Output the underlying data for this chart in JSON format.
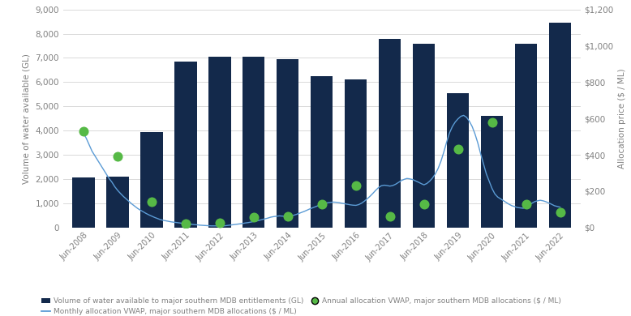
{
  "bar_labels": [
    "Jun-2008",
    "Jun-2009",
    "Jun-2010",
    "Jun-2011",
    "Jun-2012",
    "Jun-2013",
    "Jun-2014",
    "Jun-2015",
    "Jun-2016",
    "Jun-2017",
    "Jun-2018",
    "Jun-2019",
    "Jun-2020",
    "Jun-2021",
    "Jun-2022"
  ],
  "bar_values": [
    2080,
    2100,
    3950,
    6850,
    7050,
    7050,
    6950,
    6250,
    6100,
    7800,
    7600,
    5550,
    4600,
    7600,
    8450
  ],
  "bar_color": "#13294B",
  "annual_vwap_y": [
    530,
    390,
    140,
    20,
    25,
    55,
    60,
    130,
    230,
    60,
    130,
    430,
    580,
    130,
    85
  ],
  "annual_dot_color": "#56B946",
  "monthly_vwap_y": [
    520,
    490,
    455,
    420,
    395,
    370,
    345,
    320,
    295,
    270,
    250,
    225,
    205,
    188,
    172,
    158,
    144,
    130,
    118,
    106,
    96,
    87,
    78,
    70,
    63,
    56,
    50,
    44,
    40,
    37,
    34,
    31,
    29,
    27,
    25,
    23,
    22,
    20,
    18,
    16,
    15,
    13,
    12,
    11,
    10,
    9,
    9,
    9,
    9,
    9,
    10,
    12,
    14,
    16,
    18,
    20,
    22,
    25,
    27,
    30,
    33,
    36,
    40,
    44,
    48,
    52,
    57,
    60,
    62,
    64,
    63,
    62,
    62,
    64,
    67,
    72,
    78,
    84,
    90,
    97,
    104,
    110,
    116,
    122,
    128,
    133,
    136,
    138,
    140,
    139,
    137,
    134,
    131,
    128,
    125,
    123,
    122,
    126,
    134,
    145,
    158,
    172,
    188,
    205,
    220,
    230,
    233,
    231,
    228,
    231,
    238,
    248,
    258,
    265,
    270,
    268,
    264,
    257,
    250,
    242,
    235,
    242,
    255,
    272,
    295,
    325,
    365,
    415,
    470,
    520,
    555,
    580,
    598,
    612,
    617,
    607,
    585,
    556,
    515,
    465,
    405,
    350,
    295,
    255,
    215,
    185,
    168,
    158,
    148,
    138,
    128,
    120,
    115,
    110,
    108,
    106,
    112,
    122,
    133,
    142,
    147,
    150,
    147,
    142,
    135,
    128,
    120,
    116,
    112
  ],
  "monthly_line_color": "#5B9BD5",
  "left_ylabel": "Volume of water available (GL)",
  "right_ylabel": "Allocation price ($ / ML)",
  "left_ylim": [
    0,
    9000
  ],
  "right_ylim": [
    0,
    1200
  ],
  "left_yticks": [
    0,
    1000,
    2000,
    3000,
    4000,
    5000,
    6000,
    7000,
    8000,
    9000
  ],
  "right_yticks": [
    0,
    200,
    400,
    600,
    800,
    1000,
    1200
  ],
  "right_yticklabels": [
    "$0",
    "$200",
    "$400",
    "$600",
    "$800",
    "$1,000",
    "$1,200"
  ],
  "left_yticklabels": [
    "0",
    "1,000",
    "2,000",
    "3,000",
    "4,000",
    "5,000",
    "6,000",
    "7,000",
    "8,000",
    "9,000"
  ],
  "legend1_label": "Volume of water available to major southern MDB entitlements (GL)",
  "legend2_label": "Monthly allocation VWAP, major southern MDB allocations ($ / ML)",
  "legend3_label": "Annual allocation VWAP, major southern MDB allocations ($ / ML)",
  "bg_color": "#FFFFFF",
  "grid_color": "#D9D9D9",
  "text_color": "#808080",
  "bar_width": 0.65,
  "fig_width": 7.78,
  "fig_height": 3.9,
  "dpi": 100
}
